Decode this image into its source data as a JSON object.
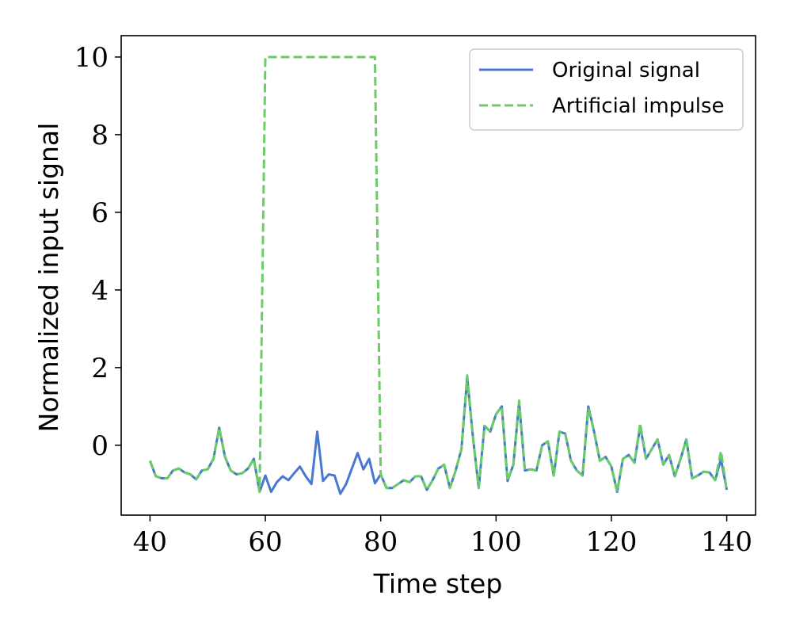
{
  "chart_data": {
    "type": "line",
    "xlabel": "Time step",
    "ylabel": "Normalized input signal",
    "xlim": [
      35,
      145
    ],
    "ylim": [
      -1.8,
      10.55
    ],
    "xticks": [
      40,
      60,
      80,
      100,
      120,
      140
    ],
    "yticks": [
      0,
      2,
      4,
      6,
      8,
      10
    ],
    "grid": false,
    "legend_position": "top-right",
    "x": [
      40,
      41,
      42,
      43,
      44,
      45,
      46,
      47,
      48,
      49,
      50,
      51,
      52,
      53,
      54,
      55,
      56,
      57,
      58,
      59,
      60,
      61,
      62,
      63,
      64,
      65,
      66,
      67,
      68,
      69,
      70,
      71,
      72,
      73,
      74,
      75,
      76,
      77,
      78,
      79,
      80,
      81,
      82,
      83,
      84,
      85,
      86,
      87,
      88,
      89,
      90,
      91,
      92,
      93,
      94,
      95,
      96,
      97,
      98,
      99,
      100,
      101,
      102,
      103,
      104,
      105,
      106,
      107,
      108,
      109,
      110,
      111,
      112,
      113,
      114,
      115,
      116,
      117,
      118,
      119,
      120,
      121,
      122,
      123,
      124,
      125,
      126,
      127,
      128,
      129,
      130,
      131,
      132,
      133,
      134,
      135,
      136,
      137,
      138,
      139,
      140
    ],
    "series": [
      {
        "name": "Original signal",
        "color": "#4878cf",
        "style": "solid",
        "values": [
          -0.4,
          -0.8,
          -0.85,
          -0.85,
          -0.65,
          -0.6,
          -0.7,
          -0.75,
          -0.88,
          -0.65,
          -0.62,
          -0.35,
          0.45,
          -0.3,
          -0.65,
          -0.75,
          -0.72,
          -0.6,
          -0.35,
          -1.2,
          -0.78,
          -1.2,
          -0.95,
          -0.8,
          -0.9,
          -0.72,
          -0.55,
          -0.8,
          -1.0,
          0.35,
          -0.92,
          -0.75,
          -0.78,
          -1.25,
          -1.0,
          -0.6,
          -0.2,
          -0.62,
          -0.35,
          -0.98,
          -0.75,
          -1.1,
          -1.1,
          -1.0,
          -0.9,
          -0.95,
          -0.8,
          -0.8,
          -1.15,
          -0.9,
          -0.6,
          -0.5,
          -1.1,
          -0.65,
          -0.1,
          1.75,
          0.2,
          -1.1,
          0.5,
          0.35,
          0.8,
          1.0,
          -0.92,
          -0.5,
          1.1,
          -0.65,
          -0.62,
          -0.65,
          0.0,
          0.1,
          -0.78,
          0.35,
          0.3,
          -0.4,
          -0.65,
          -0.78,
          1.0,
          0.35,
          -0.4,
          -0.3,
          -0.55,
          -1.2,
          -0.35,
          -0.25,
          -0.45,
          0.5,
          -0.35,
          -0.1,
          0.15,
          -0.5,
          -0.25,
          -0.8,
          -0.35,
          0.15,
          -0.85,
          -0.78,
          -0.68,
          -0.7,
          -0.9,
          -0.35,
          -1.15
        ]
      },
      {
        "name": "Artificial impulse",
        "color": "#6acc65",
        "style": "dashed",
        "values": [
          -0.4,
          -0.8,
          -0.85,
          -0.85,
          -0.65,
          -0.6,
          -0.7,
          -0.75,
          -0.88,
          -0.65,
          -0.62,
          -0.35,
          0.45,
          -0.3,
          -0.65,
          -0.75,
          -0.72,
          -0.6,
          -0.35,
          -1.2,
          10,
          10,
          10,
          10,
          10,
          10,
          10,
          10,
          10,
          10,
          10,
          10,
          10,
          10,
          10,
          10,
          10,
          10,
          10,
          10,
          -0.75,
          -1.1,
          -1.1,
          -1.0,
          -0.9,
          -0.95,
          -0.8,
          -0.8,
          -1.15,
          -0.9,
          -0.6,
          -0.5,
          -1.1,
          -0.65,
          -0.1,
          1.8,
          0.2,
          -1.1,
          0.5,
          0.35,
          0.8,
          1.0,
          -0.92,
          -0.5,
          1.15,
          -0.65,
          -0.62,
          -0.65,
          0.0,
          0.1,
          -0.78,
          0.35,
          0.3,
          -0.4,
          -0.65,
          -0.78,
          0.95,
          0.35,
          -0.4,
          -0.3,
          -0.55,
          -1.2,
          -0.35,
          -0.25,
          -0.45,
          0.55,
          -0.35,
          -0.1,
          0.15,
          -0.5,
          -0.25,
          -0.8,
          -0.35,
          0.15,
          -0.85,
          -0.78,
          -0.68,
          -0.7,
          -0.9,
          -0.15,
          -1.15
        ]
      }
    ]
  }
}
